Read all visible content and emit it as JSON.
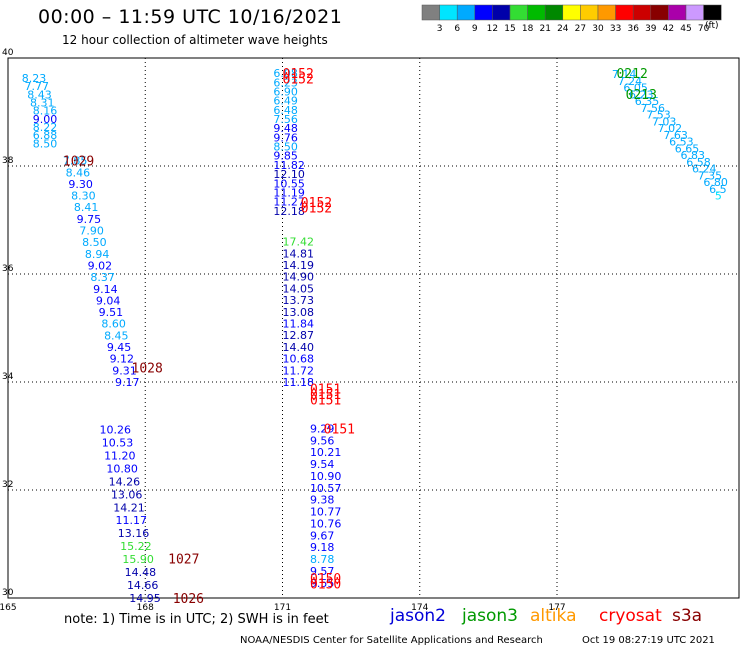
{
  "title": "00:00 – 11:59 UTC 10/16/2021",
  "subtitle": "12 hour collection of altimeter wave heights",
  "note": "note:  1) Time is in UTC;  2) SWH is in feet",
  "credit": "NOAA/NESDIS Center for Satellite Applications and Research",
  "generated": "Oct 19 08:27:19 UTC 2021",
  "satellites": [
    {
      "name": "jason2",
      "color": "#0000d8"
    },
    {
      "name": "jason3",
      "color": "#009900"
    },
    {
      "name": "altika",
      "color": "#ff9900"
    },
    {
      "name": "cryosat",
      "color": "#ff0000"
    },
    {
      "name": "s3a",
      "color": "#880000"
    }
  ],
  "colorbar": {
    "unit": "(ft)",
    "labels": [
      "3",
      "6",
      "9",
      "12",
      "15",
      "18",
      "21",
      "24",
      "27",
      "30",
      "33",
      "36",
      "39",
      "42",
      "45",
      "70"
    ],
    "colors": [
      "#808080",
      "#00e5ff",
      "#00aaff",
      "#0000ff",
      "#0000aa",
      "#33dd33",
      "#00bb00",
      "#008800",
      "#ffff00",
      "#ffcc00",
      "#ff9900",
      "#ff0000",
      "#cc0000",
      "#880000",
      "#aa00aa",
      "#cc99ff",
      "#000000"
    ]
  },
  "chart_data": {
    "type": "scatter",
    "xlabel": "",
    "ylabel": "",
    "xlim": [
      165,
      181
    ],
    "ylim": [
      30,
      40
    ],
    "x_ticks": [
      "165",
      "168",
      "171",
      "174",
      "177"
    ],
    "y_ticks": [
      "30",
      "32",
      "34",
      "36",
      "38",
      "40"
    ],
    "tracks": [
      {
        "lon": 165.3,
        "lat_start": 39.63,
        "lat_end": 38.42,
        "values": [
          "8.23",
          "7.77",
          "8.43",
          "8.31",
          "8.16",
          "9.00",
          "8.22",
          "6.88",
          "8.50"
        ]
      },
      {
        "lon": 166.2,
        "lat_start": 38.1,
        "lat_end": 34.0,
        "values": [
          "7.85",
          "8.46",
          "9.30",
          "8.30",
          "8.41",
          "9.75",
          "7.90",
          "8.50",
          "8.94",
          "9.02",
          "8.37",
          "9.14",
          "9.04",
          "9.51",
          "8.60",
          "8.45",
          "9.45",
          "9.12",
          "9.31",
          "9.17"
        ]
      },
      {
        "lon": 167.0,
        "lat_start": 33.12,
        "lat_end": 30.0,
        "values": [
          "10.26",
          "10.53",
          "11.20",
          "10.80",
          "14.26",
          "13.06",
          "14.21",
          "11.17",
          "13.16",
          "15.22",
          "15.90",
          "14.48",
          "14.66",
          "14.95"
        ]
      },
      {
        "lon": 170.8,
        "lat_start": 39.72,
        "lat_end": 37.17,
        "values": [
          "6.08",
          "6.23",
          "6.90",
          "6.49",
          "6.48",
          "7.56",
          "9.48",
          "9.76",
          "8.50",
          "9.85",
          "11.82",
          "12.10",
          "10.55",
          "11.19",
          "11.27",
          "12.18"
        ]
      },
      {
        "lon": 171.0,
        "lat_start": 36.6,
        "lat_end": 34.0,
        "values": [
          "17.42",
          "14.81",
          "14.19",
          "14.90",
          "14.05",
          "13.73",
          "13.08",
          "11.84",
          "12.87",
          "14.40",
          "10.68",
          "11.72",
          "11.18"
        ]
      },
      {
        "lon": 171.6,
        "lat_start": 33.14,
        "lat_end": 30.28,
        "values": [
          "9.29",
          "9.56",
          "10.21",
          "9.54",
          "10.90",
          "10.57",
          "9.38",
          "10.77",
          "10.76",
          "9.67",
          "9.18",
          "8.78",
          "9.57",
          "9.55"
        ]
      },
      {
        "lon": 178.2,
        "lat_start": 39.7,
        "lat_end": 37.45,
        "values": [
          "7.14",
          "7.24",
          "6.05",
          "6.23",
          "6.35",
          "7.56",
          "7.53",
          "7.03",
          "7.02",
          "7.63",
          "6.53",
          "6.65",
          "6.83",
          "6.58",
          "6.24",
          "7.35",
          "6.80",
          "6.5",
          "5"
        ]
      }
    ],
    "time_labels": [
      {
        "text": "0152",
        "lon": 171.0,
        "lat": 39.72,
        "sat": "cryosat"
      },
      {
        "text": "0152",
        "lon": 171.0,
        "lat": 39.62,
        "sat": "cryosat"
      },
      {
        "text": "1029",
        "lon": 166.2,
        "lat": 38.1,
        "sat": "s3a"
      },
      {
        "text": "0152",
        "lon": 171.4,
        "lat": 37.33,
        "sat": "cryosat"
      },
      {
        "text": "0152",
        "lon": 171.4,
        "lat": 37.23,
        "sat": "cryosat"
      },
      {
        "text": "1028",
        "lon": 167.7,
        "lat": 34.27,
        "sat": "s3a"
      },
      {
        "text": "0151",
        "lon": 171.6,
        "lat": 33.88,
        "sat": "cryosat"
      },
      {
        "text": "0151",
        "lon": 171.6,
        "lat": 33.78,
        "sat": "cryosat"
      },
      {
        "text": "0151",
        "lon": 171.6,
        "lat": 33.68,
        "sat": "cryosat"
      },
      {
        "text": "0151",
        "lon": 171.9,
        "lat": 33.14,
        "sat": "cryosat"
      },
      {
        "text": "1027",
        "lon": 168.5,
        "lat": 30.73,
        "sat": "s3a"
      },
      {
        "text": "1026",
        "lon": 168.6,
        "lat": 30.0,
        "sat": "s3a"
      },
      {
        "text": "0150",
        "lon": 171.6,
        "lat": 30.37,
        "sat": "cryosat"
      },
      {
        "text": "0150",
        "lon": 171.6,
        "lat": 30.27,
        "sat": "cryosat"
      },
      {
        "text": "0212",
        "lon": 178.3,
        "lat": 39.72,
        "sat": "jason3"
      },
      {
        "text": "0213",
        "lon": 178.5,
        "lat": 39.33,
        "sat": "jason3"
      }
    ]
  }
}
